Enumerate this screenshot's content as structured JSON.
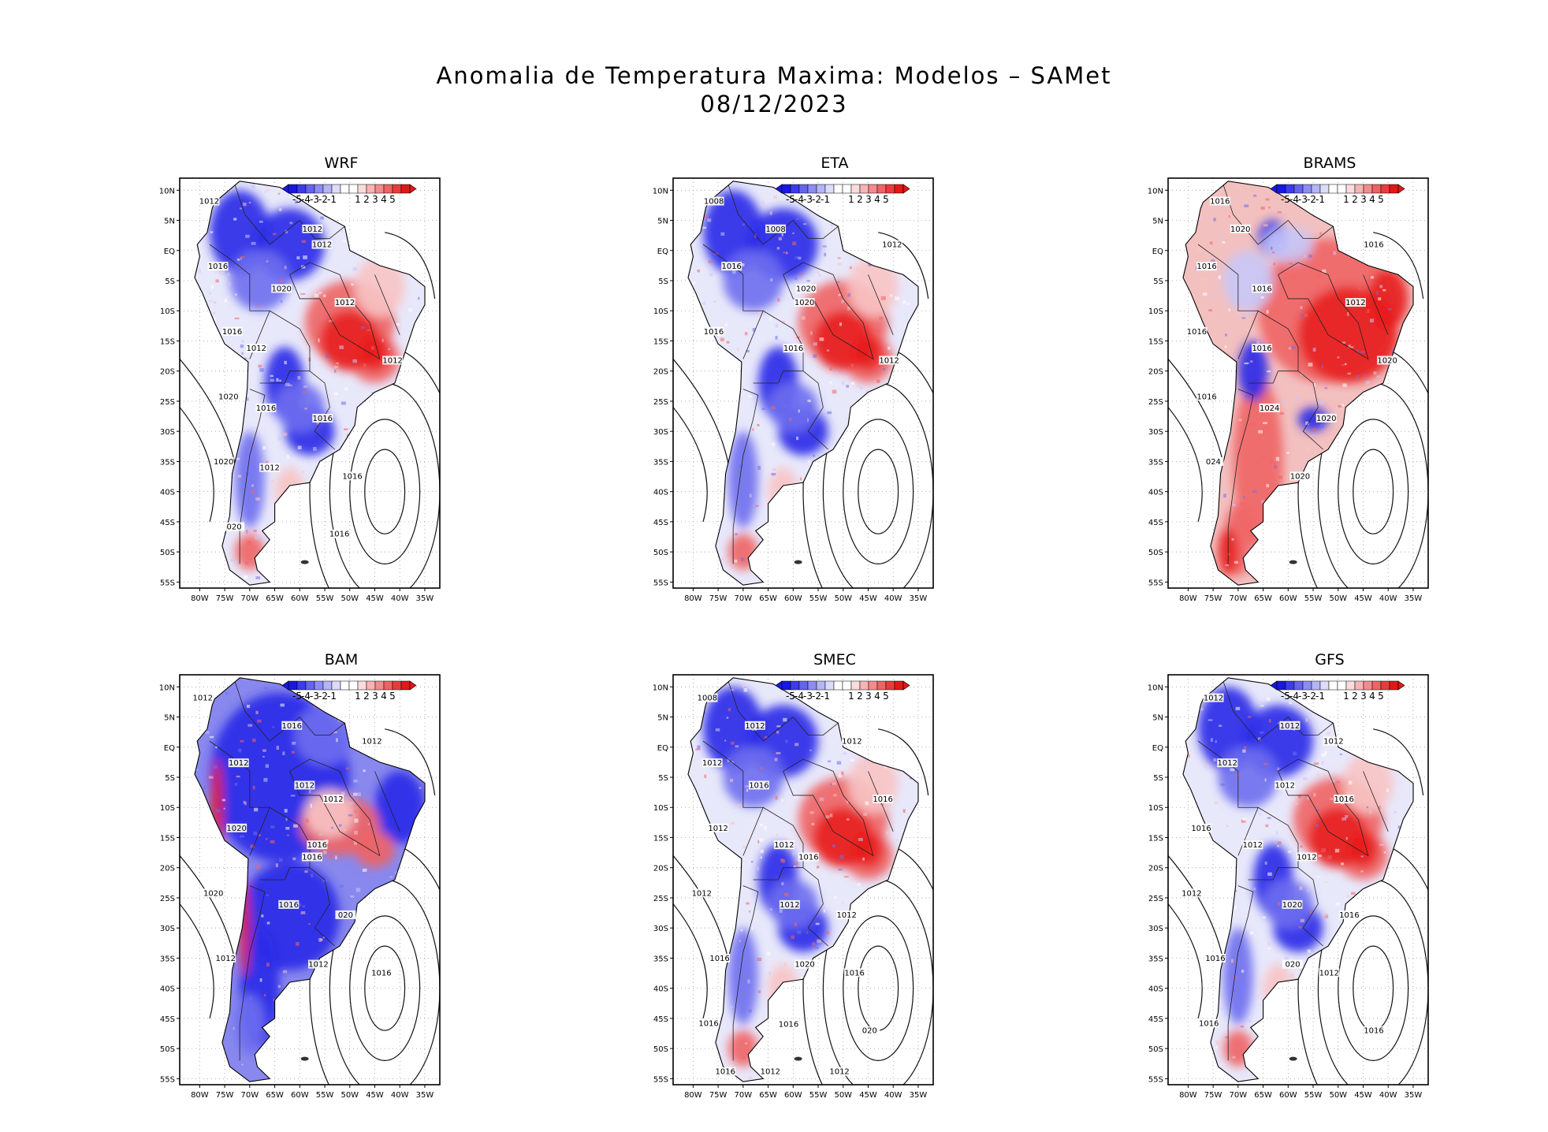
{
  "title": {
    "line1": "Anomalia de Temperatura Maxima: Modelos – SAMet",
    "line2": "08/12/2023"
  },
  "colors": {
    "blue_strong": "#2a2ae8",
    "blue_mid": "#6e6ef0",
    "blue_light": "#c8c8f8",
    "neutral": "#ffffff",
    "red_light": "#f8c4c4",
    "red_mid": "#f06464",
    "red_strong": "#e81e1e"
  },
  "colorbar": {
    "labels": [
      "-5",
      "-4",
      "-3",
      "-2",
      "-1",
      "1",
      "2",
      "3",
      "4",
      "5"
    ]
  },
  "axes": {
    "lat_labels": [
      "10N",
      "5N",
      "EQ",
      "5S",
      "10S",
      "15S",
      "20S",
      "25S",
      "30S",
      "35S",
      "40S",
      "45S",
      "50S",
      "55S"
    ],
    "lon_labels": [
      "80W",
      "75W",
      "70W",
      "65W",
      "60W",
      "55W",
      "50W",
      "45W",
      "40W",
      "35W"
    ]
  },
  "panels": [
    {
      "name": "WRF",
      "pattern": "mixed",
      "isobar_labels": [
        "1012",
        "1012",
        "1012",
        "1016",
        "1012",
        "1020",
        "1016",
        "1012",
        "1012",
        "1020",
        "1016",
        "1016",
        "1020",
        "1016",
        "1012",
        "020",
        "1016"
      ]
    },
    {
      "name": "ETA",
      "pattern": "mixed",
      "isobar_labels": [
        "1008",
        "1012",
        "1008",
        "1016",
        "1020",
        "1020",
        "1016",
        "1012",
        "1016"
      ]
    },
    {
      "name": "BRAMS",
      "pattern": "warm",
      "isobar_labels": [
        "1016",
        "1016",
        "1020",
        "1016",
        "1012",
        "1016",
        "1016",
        "1020",
        "1016",
        "1016",
        "1020",
        "1024",
        "024",
        "1020"
      ]
    },
    {
      "name": "BAM",
      "pattern": "cold",
      "isobar_labels": [
        "1012",
        "1012",
        "1016",
        "1012",
        "1012",
        "1012",
        "1020",
        "1016",
        "1016",
        "1020",
        "020",
        "1016",
        "1012",
        "1016",
        "1012"
      ]
    },
    {
      "name": "SMEC",
      "pattern": "mixed",
      "isobar_labels": [
        "1008",
        "1012",
        "1012",
        "1012",
        "1016",
        "1016",
        "1012",
        "1016",
        "1012",
        "1012",
        "1012",
        "1012",
        "1016",
        "1016",
        "1020",
        "1016",
        "020",
        "1016",
        "1016",
        "1012",
        "1012"
      ]
    },
    {
      "name": "GFS",
      "pattern": "mixed",
      "isobar_labels": [
        "1012",
        "1012",
        "1012",
        "1012",
        "1016",
        "1012",
        "1016",
        "1012",
        "1012",
        "1012",
        "1016",
        "1020",
        "1016",
        "1012",
        "020",
        "1016",
        "1016"
      ]
    }
  ]
}
